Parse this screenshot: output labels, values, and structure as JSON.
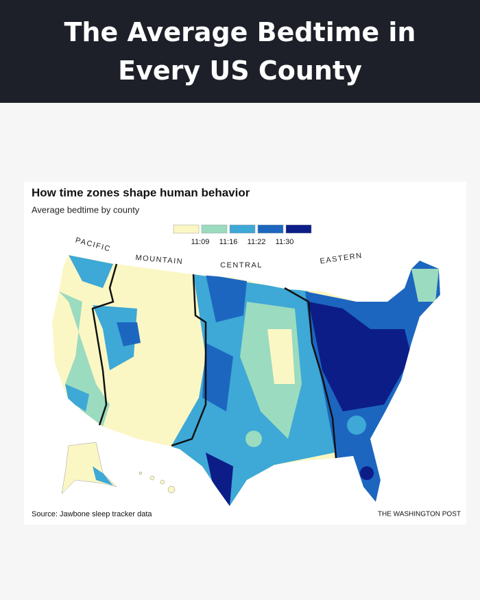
{
  "header": {
    "title": "The Average Bedtime in Every US County"
  },
  "map": {
    "title": "How time zones shape human behavior",
    "subtitle": "Average bedtime by county",
    "legend": {
      "colors": [
        "#fbf7c4",
        "#9bdbbf",
        "#3ea8d6",
        "#1c66c0",
        "#0c1d88"
      ],
      "labels": [
        "11:09",
        "11:16",
        "11:22",
        "11:30"
      ]
    },
    "zones": [
      "PACIFIC",
      "MOUNTAIN",
      "CENTRAL",
      "EASTERN"
    ],
    "source": "Source: Jawbone sleep tracker data",
    "credit": "THE WASHINGTON POST"
  }
}
